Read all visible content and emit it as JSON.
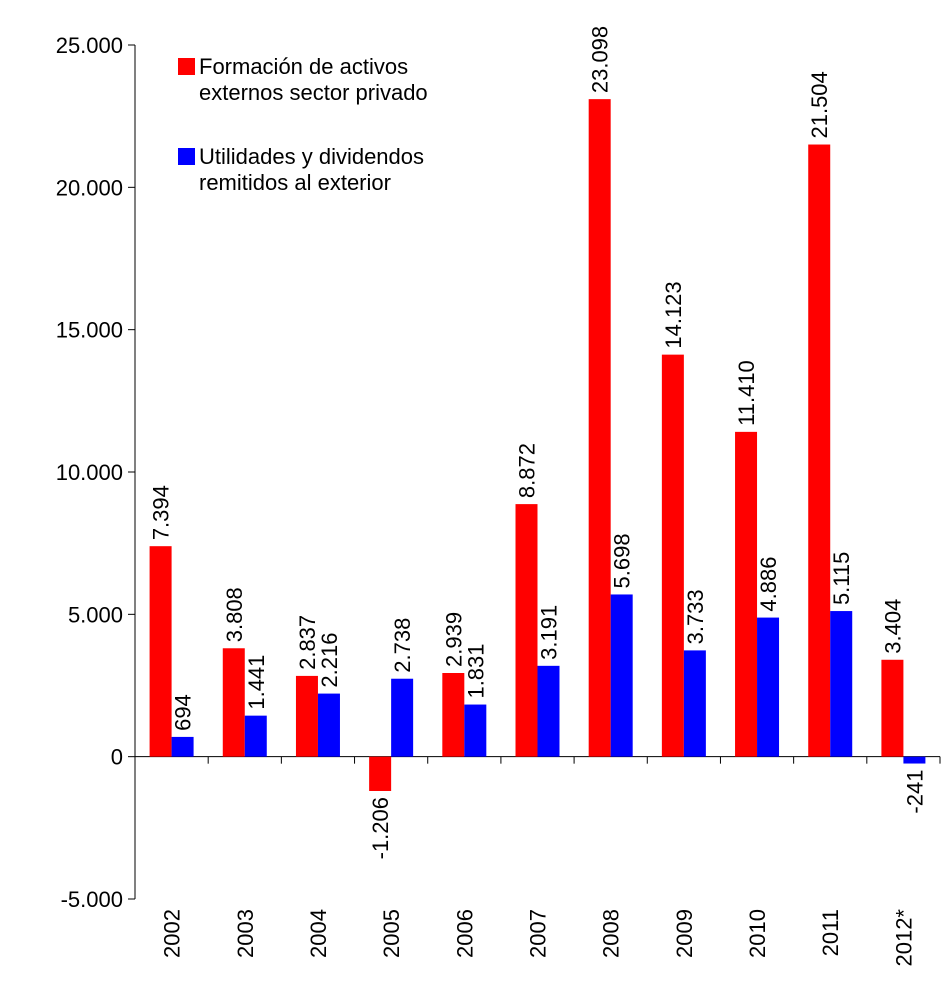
{
  "chart_data": {
    "type": "bar",
    "categories": [
      "2002",
      "2003",
      "2004",
      "2005",
      "2006",
      "2007",
      "2008",
      "2009",
      "2010",
      "2011",
      "2012*"
    ],
    "series": [
      {
        "name": "Formación de activos externos sector privado",
        "color": "#ff0000",
        "values": [
          7394,
          3808,
          2837,
          -1206,
          2939,
          8872,
          23098,
          14123,
          11410,
          21504,
          3404
        ],
        "value_labels": [
          "7.394",
          "3.808",
          "2.837",
          "-1.206",
          "2.939",
          "8.872",
          "23.098",
          "14.123",
          "11.410",
          "21.504",
          "3.404"
        ]
      },
      {
        "name": "Utilidades y dividendos remitidos al exterior",
        "color": "#0000ff",
        "values": [
          694,
          1441,
          2216,
          2738,
          1831,
          3191,
          5698,
          3733,
          4886,
          5115,
          -241
        ],
        "value_labels": [
          "694",
          "1.441",
          "2.216",
          "2.738",
          "1.831",
          "3.191",
          "5.698",
          "3.733",
          "4.886",
          "5.115",
          "-241"
        ]
      }
    ],
    "ylim": [
      -5000,
      25000
    ],
    "yticks": [
      {
        "value": -5000,
        "label": "-5.000"
      },
      0,
      {
        "value": 5000,
        "label": "5.000"
      },
      {
        "value": 10000,
        "label": "10.000"
      },
      {
        "value": 15000,
        "label": "15.000"
      },
      {
        "value": 20000,
        "label": "20.000"
      },
      {
        "value": 25000,
        "label": "25.000"
      }
    ],
    "legend": "top-left"
  }
}
